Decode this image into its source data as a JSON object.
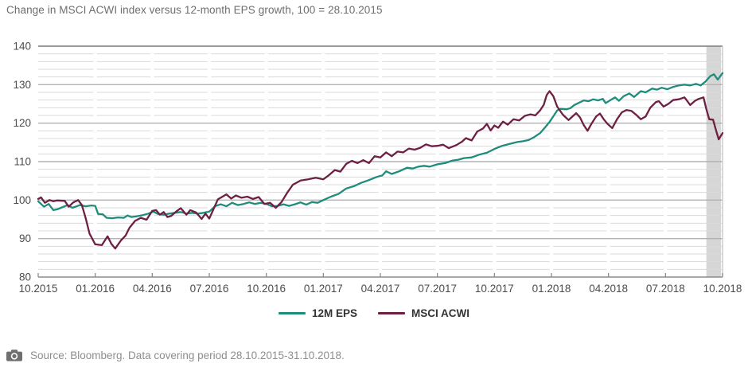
{
  "header": {
    "title": "Change in MSCI ACWI index versus 12-month EPS growth, 100 = 28.10.2015"
  },
  "footer": {
    "source_note": "Source: Bloomberg. Data covering period 28.10.2015-31.10.2018.",
    "icon": "camera-icon"
  },
  "colors": {
    "eps_line": "#1f8c7c",
    "msci_line": "#6e2043",
    "grid_major": "#b2b2b2",
    "grid_minor": "#dadada",
    "axis_frame": "#8b8b8b",
    "right_border": "#c9c9c9",
    "highlight_band": "#d6d6d6",
    "axis_text": "#4c4c4c",
    "title_text": "#6e6e6e",
    "legend_text": "#333333",
    "footer_text": "#8d8d8d",
    "footer_icon": "#6f6f6f"
  },
  "chart_data": {
    "type": "line",
    "title": "Change in MSCI ACWI index versus 12-month EPS growth, 100 = 28.10.2015",
    "x_axis": {
      "unit": "months_from_start",
      "range_months": [
        0,
        36
      ],
      "ticks": [
        {
          "m": 0,
          "label": "10.2015"
        },
        {
          "m": 3,
          "label": "01.2016"
        },
        {
          "m": 6,
          "label": "04.2016"
        },
        {
          "m": 9,
          "label": "07.2016"
        },
        {
          "m": 12,
          "label": "10.2016"
        },
        {
          "m": 15,
          "label": "01.2017"
        },
        {
          "m": 18,
          "label": "04.2017"
        },
        {
          "m": 21,
          "label": "07.2017"
        },
        {
          "m": 24,
          "label": "10.2017"
        },
        {
          "m": 27,
          "label": "01.2018"
        },
        {
          "m": 30,
          "label": "04.2018"
        },
        {
          "m": 33,
          "label": "07.2018"
        },
        {
          "m": 36,
          "label": "10.2018"
        }
      ]
    },
    "y_axis": {
      "min": 80,
      "max": 140,
      "major_step": 10,
      "minor_step": 2,
      "ticks": [
        140,
        130,
        120,
        110,
        100,
        90,
        80
      ]
    },
    "grid": "on",
    "legend_position": "bottom",
    "highlight_band": {
      "from_m": 35.15,
      "to_m": 35.92
    },
    "series": [
      {
        "name": "12M EPS",
        "color": "#1f8c7c",
        "points": [
          [
            0,
            99.7
          ],
          [
            0.3,
            98.3
          ],
          [
            0.55,
            99.0
          ],
          [
            0.8,
            97.4
          ],
          [
            1.0,
            97.6
          ],
          [
            1.2,
            98.0
          ],
          [
            1.55,
            98.7
          ],
          [
            1.8,
            98.0
          ],
          [
            2.2,
            98.7
          ],
          [
            2.5,
            98.4
          ],
          [
            2.8,
            98.6
          ],
          [
            3.0,
            98.5
          ],
          [
            3.15,
            96.4
          ],
          [
            3.4,
            96.3
          ],
          [
            3.6,
            95.4
          ],
          [
            3.9,
            95.3
          ],
          [
            4.2,
            95.5
          ],
          [
            4.5,
            95.4
          ],
          [
            4.7,
            96.0
          ],
          [
            4.9,
            95.6
          ],
          [
            5.2,
            95.8
          ],
          [
            5.5,
            96.1
          ],
          [
            5.8,
            96.5
          ],
          [
            6.05,
            97.0
          ],
          [
            6.3,
            96.4
          ],
          [
            6.6,
            96.2
          ],
          [
            6.9,
            96.5
          ],
          [
            7.2,
            96.7
          ],
          [
            7.5,
            96.9
          ],
          [
            7.8,
            96.5
          ],
          [
            8.1,
            96.7
          ],
          [
            8.4,
            96.5
          ],
          [
            8.7,
            96.7
          ],
          [
            9.0,
            97.0
          ],
          [
            9.3,
            98.4
          ],
          [
            9.6,
            98.9
          ],
          [
            9.9,
            98.4
          ],
          [
            10.2,
            99.3
          ],
          [
            10.5,
            98.7
          ],
          [
            10.8,
            99.0
          ],
          [
            11.1,
            99.4
          ],
          [
            11.4,
            99.0
          ],
          [
            11.7,
            99.3
          ],
          [
            12.0,
            99.0
          ],
          [
            12.3,
            98.4
          ],
          [
            12.6,
            98.5
          ],
          [
            12.9,
            98.9
          ],
          [
            13.2,
            98.5
          ],
          [
            13.5,
            98.9
          ],
          [
            13.8,
            99.4
          ],
          [
            14.1,
            98.8
          ],
          [
            14.4,
            99.5
          ],
          [
            14.7,
            99.3
          ],
          [
            15.0,
            100.0
          ],
          [
            15.4,
            100.9
          ],
          [
            15.8,
            101.6
          ],
          [
            16.2,
            103.0
          ],
          [
            16.6,
            103.6
          ],
          [
            17.0,
            104.5
          ],
          [
            17.4,
            105.2
          ],
          [
            17.8,
            106.0
          ],
          [
            18.1,
            106.4
          ],
          [
            18.3,
            107.5
          ],
          [
            18.6,
            106.8
          ],
          [
            19.0,
            107.5
          ],
          [
            19.4,
            108.4
          ],
          [
            19.7,
            108.2
          ],
          [
            20.0,
            108.7
          ],
          [
            20.3,
            108.9
          ],
          [
            20.6,
            108.7
          ],
          [
            21.0,
            109.3
          ],
          [
            21.4,
            109.6
          ],
          [
            21.8,
            110.3
          ],
          [
            22.1,
            110.5
          ],
          [
            22.4,
            110.9
          ],
          [
            22.8,
            111.1
          ],
          [
            23.2,
            111.8
          ],
          [
            23.6,
            112.3
          ],
          [
            24.0,
            113.3
          ],
          [
            24.4,
            114.1
          ],
          [
            24.8,
            114.6
          ],
          [
            25.2,
            115.1
          ],
          [
            25.5,
            115.3
          ],
          [
            25.8,
            115.6
          ],
          [
            26.1,
            116.4
          ],
          [
            26.4,
            117.4
          ],
          [
            26.65,
            118.8
          ],
          [
            26.9,
            120.3
          ],
          [
            27.1,
            121.8
          ],
          [
            27.3,
            123.3
          ],
          [
            27.5,
            123.7
          ],
          [
            27.8,
            123.6
          ],
          [
            28.0,
            123.9
          ],
          [
            28.2,
            124.7
          ],
          [
            28.45,
            125.3
          ],
          [
            28.7,
            125.9
          ],
          [
            28.95,
            125.7
          ],
          [
            29.2,
            126.2
          ],
          [
            29.45,
            125.9
          ],
          [
            29.7,
            126.3
          ],
          [
            29.85,
            125.2
          ],
          [
            30.1,
            126.0
          ],
          [
            30.35,
            126.7
          ],
          [
            30.55,
            125.8
          ],
          [
            30.8,
            127.0
          ],
          [
            31.1,
            127.7
          ],
          [
            31.35,
            126.8
          ],
          [
            31.7,
            128.3
          ],
          [
            31.95,
            128.0
          ],
          [
            32.3,
            129.0
          ],
          [
            32.55,
            128.7
          ],
          [
            32.8,
            129.2
          ],
          [
            33.1,
            128.8
          ],
          [
            33.4,
            129.4
          ],
          [
            33.7,
            129.8
          ],
          [
            34.0,
            130.0
          ],
          [
            34.3,
            129.8
          ],
          [
            34.6,
            130.2
          ],
          [
            34.85,
            129.8
          ],
          [
            35.1,
            130.8
          ],
          [
            35.35,
            132.2
          ],
          [
            35.55,
            132.7
          ],
          [
            35.75,
            131.3
          ],
          [
            36.0,
            133.0
          ]
        ]
      },
      {
        "name": "MSCI ACWI",
        "color": "#6e2043",
        "points": [
          [
            0,
            100.3
          ],
          [
            0.15,
            100.7
          ],
          [
            0.35,
            99.3
          ],
          [
            0.6,
            100.0
          ],
          [
            0.8,
            99.7
          ],
          [
            1.0,
            99.9
          ],
          [
            1.4,
            99.8
          ],
          [
            1.6,
            98.3
          ],
          [
            1.85,
            99.4
          ],
          [
            2.1,
            100.0
          ],
          [
            2.3,
            98.7
          ],
          [
            2.5,
            95.3
          ],
          [
            2.7,
            91.3
          ],
          [
            3.0,
            88.5
          ],
          [
            3.35,
            88.3
          ],
          [
            3.65,
            90.6
          ],
          [
            3.85,
            88.6
          ],
          [
            4.05,
            87.4
          ],
          [
            4.35,
            89.5
          ],
          [
            4.6,
            90.8
          ],
          [
            4.8,
            92.8
          ],
          [
            5.1,
            94.6
          ],
          [
            5.4,
            95.4
          ],
          [
            5.7,
            94.9
          ],
          [
            6.0,
            97.2
          ],
          [
            6.2,
            97.4
          ],
          [
            6.4,
            96.2
          ],
          [
            6.6,
            96.9
          ],
          [
            6.8,
            95.6
          ],
          [
            7.0,
            95.9
          ],
          [
            7.3,
            97.2
          ],
          [
            7.5,
            97.9
          ],
          [
            7.8,
            96.2
          ],
          [
            8.0,
            97.4
          ],
          [
            8.3,
            96.8
          ],
          [
            8.6,
            95.1
          ],
          [
            8.8,
            96.5
          ],
          [
            9.0,
            95.2
          ],
          [
            9.2,
            97.4
          ],
          [
            9.45,
            100.2
          ],
          [
            9.6,
            100.6
          ],
          [
            9.9,
            101.5
          ],
          [
            10.15,
            100.4
          ],
          [
            10.4,
            101.2
          ],
          [
            10.7,
            100.6
          ],
          [
            11.0,
            100.9
          ],
          [
            11.3,
            100.3
          ],
          [
            11.6,
            100.8
          ],
          [
            11.9,
            99.0
          ],
          [
            12.2,
            99.3
          ],
          [
            12.5,
            98.0
          ],
          [
            12.8,
            99.5
          ],
          [
            13.1,
            101.9
          ],
          [
            13.4,
            104.0
          ],
          [
            13.8,
            105.1
          ],
          [
            14.2,
            105.4
          ],
          [
            14.6,
            105.8
          ],
          [
            15.0,
            105.4
          ],
          [
            15.3,
            106.5
          ],
          [
            15.6,
            107.8
          ],
          [
            15.9,
            107.4
          ],
          [
            16.2,
            109.4
          ],
          [
            16.5,
            110.2
          ],
          [
            16.8,
            109.6
          ],
          [
            17.1,
            110.4
          ],
          [
            17.4,
            109.6
          ],
          [
            17.7,
            111.4
          ],
          [
            18.0,
            111.1
          ],
          [
            18.3,
            112.4
          ],
          [
            18.6,
            111.4
          ],
          [
            18.9,
            112.6
          ],
          [
            19.2,
            112.4
          ],
          [
            19.5,
            113.4
          ],
          [
            19.8,
            113.1
          ],
          [
            20.1,
            113.6
          ],
          [
            20.4,
            114.5
          ],
          [
            20.7,
            114.0
          ],
          [
            21.0,
            114.1
          ],
          [
            21.3,
            114.4
          ],
          [
            21.6,
            113.5
          ],
          [
            22.0,
            114.3
          ],
          [
            22.3,
            115.2
          ],
          [
            22.5,
            116.1
          ],
          [
            22.8,
            115.5
          ],
          [
            23.1,
            117.8
          ],
          [
            23.4,
            118.6
          ],
          [
            23.6,
            119.8
          ],
          [
            23.8,
            118.1
          ],
          [
            24.0,
            119.4
          ],
          [
            24.2,
            118.8
          ],
          [
            24.45,
            120.4
          ],
          [
            24.7,
            119.6
          ],
          [
            25.0,
            121.0
          ],
          [
            25.3,
            120.7
          ],
          [
            25.6,
            121.9
          ],
          [
            25.9,
            122.3
          ],
          [
            26.15,
            122.0
          ],
          [
            26.4,
            123.3
          ],
          [
            26.6,
            124.8
          ],
          [
            26.75,
            127.3
          ],
          [
            26.9,
            128.3
          ],
          [
            27.1,
            127.0
          ],
          [
            27.3,
            124.3
          ],
          [
            27.6,
            122.2
          ],
          [
            27.9,
            120.8
          ],
          [
            28.1,
            121.7
          ],
          [
            28.3,
            122.6
          ],
          [
            28.5,
            121.5
          ],
          [
            28.7,
            119.5
          ],
          [
            28.9,
            118.0
          ],
          [
            29.1,
            119.8
          ],
          [
            29.35,
            121.7
          ],
          [
            29.55,
            122.5
          ],
          [
            29.75,
            121.0
          ],
          [
            29.95,
            119.8
          ],
          [
            30.2,
            118.7
          ],
          [
            30.45,
            121.0
          ],
          [
            30.7,
            122.8
          ],
          [
            30.95,
            123.4
          ],
          [
            31.2,
            123.2
          ],
          [
            31.45,
            122.2
          ],
          [
            31.7,
            121.0
          ],
          [
            31.95,
            121.7
          ],
          [
            32.2,
            124.0
          ],
          [
            32.5,
            125.5
          ],
          [
            32.65,
            125.7
          ],
          [
            32.9,
            124.3
          ],
          [
            33.15,
            125.0
          ],
          [
            33.4,
            126.0
          ],
          [
            33.7,
            126.2
          ],
          [
            34.0,
            126.7
          ],
          [
            34.3,
            124.7
          ],
          [
            34.55,
            125.8
          ],
          [
            34.75,
            126.3
          ],
          [
            35.0,
            126.7
          ],
          [
            35.15,
            123.6
          ],
          [
            35.3,
            121.0
          ],
          [
            35.5,
            120.9
          ],
          [
            35.65,
            118.3
          ],
          [
            35.8,
            115.8
          ],
          [
            36.0,
            117.4
          ]
        ]
      }
    ]
  }
}
